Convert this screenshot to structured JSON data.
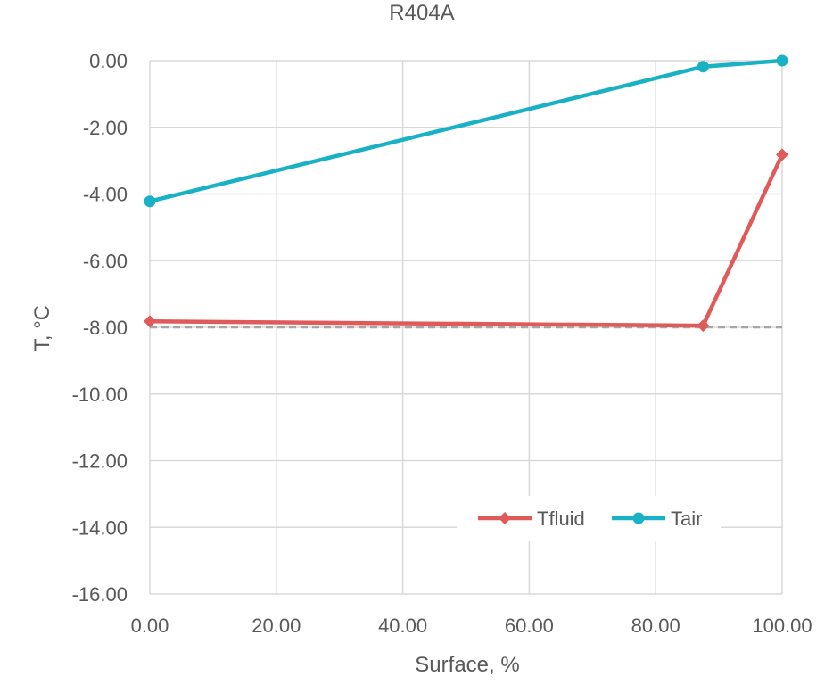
{
  "chart_data": {
    "type": "line",
    "title": "R404A",
    "xlabel": "Surface, %",
    "ylabel": "T, °C",
    "xlim": [
      0,
      100
    ],
    "ylim": [
      -16,
      0
    ],
    "xticks": [
      "0.00",
      "20.00",
      "40.00",
      "60.00",
      "80.00",
      "100.00"
    ],
    "yticks": [
      "0.00",
      "-2.00",
      "-4.00",
      "-6.00",
      "-8.00",
      "-10.00",
      "-12.00",
      "-14.00",
      "-16.00"
    ],
    "grid": true,
    "legend_position": "bottom-right",
    "series": [
      {
        "name": "Tfluid",
        "color": "#e05a5a",
        "marker": "diamond",
        "points": [
          [
            0,
            -7.82
          ],
          [
            87.5,
            -7.95
          ],
          [
            100,
            -2.82
          ]
        ]
      },
      {
        "name": "Tair",
        "color": "#19b2c4",
        "marker": "circle",
        "points": [
          [
            0,
            -4.22
          ],
          [
            87.5,
            -0.18
          ],
          [
            100,
            0.0
          ]
        ]
      }
    ],
    "reference_line": {
      "y": -8.0,
      "style": "dashed",
      "color": "#a6a6a6"
    }
  }
}
